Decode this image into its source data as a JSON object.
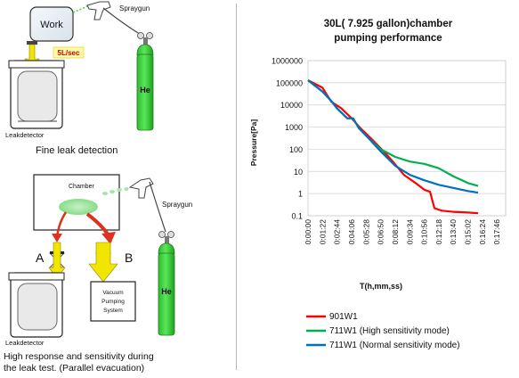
{
  "left_panel": {
    "top_diagram": {
      "work_label": "Work",
      "rate_label": "5L/sec",
      "spraygun_label": "Spraygun",
      "gas_label": "He",
      "leakdetector_label": "Leakdetector",
      "caption": "Fine leak detection"
    },
    "bottom_diagram": {
      "chamber_label": "Chamber",
      "spraygun_label": "Spraygun",
      "gas_label": "He",
      "valve_a_label": "A",
      "valve_b_label": "B",
      "pump_label_lines": [
        "Vacuum",
        "Pumping",
        "System"
      ],
      "leakdetector_label": "Leakdetector",
      "caption_lines": [
        "High response and sensitivity during",
        "the leak test. (Parallel evacuation)"
      ]
    }
  },
  "colors": {
    "gas_cylinder": "#3bd23b",
    "yellow_arrow": "#f2e600",
    "red_arrow": "#e03020",
    "accent_red_text": "#d00000"
  },
  "chart_data": {
    "type": "line",
    "title": "30L( 7.925 gallon)chamber",
    "subtitle": "pumping performance",
    "xlabel": "T(h,mm,ss)",
    "ylabel": "Pressure[Pa]",
    "y_scale": "log",
    "ylim": [
      0.1,
      1000000
    ],
    "y_ticks": [
      "1000000",
      "100000",
      "10000",
      "1000",
      "100",
      "10",
      "1",
      "0.1"
    ],
    "x_ticks": [
      "0:00:00",
      "0:01:22",
      "0:02:44",
      "0:04:06",
      "0:05:28",
      "0:06:50",
      "0:08:12",
      "0:09:34",
      "0:10:56",
      "0:12:18",
      "0:13:40",
      "0:15:02",
      "0:16:24",
      "0:17:46"
    ],
    "legend_position": "bottom",
    "series": [
      {
        "name": "901W1",
        "color": "#ff0000",
        "points": [
          [
            0,
            130000
          ],
          [
            1,
            60000
          ],
          [
            1.6,
            14000
          ],
          [
            2.3,
            7000
          ],
          [
            3,
            2500
          ],
          [
            3.6,
            900
          ],
          [
            4.4,
            280
          ],
          [
            5.2,
            80
          ],
          [
            5.9,
            25
          ],
          [
            6.6,
            7
          ],
          [
            7.4,
            3
          ],
          [
            8,
            1.5
          ],
          [
            8.4,
            1.2
          ],
          [
            8.7,
            0.22
          ],
          [
            9.2,
            0.17
          ],
          [
            10,
            0.15
          ],
          [
            11,
            0.14
          ],
          [
            11.7,
            0.13
          ]
        ]
      },
      {
        "name": "711W1 (High sensitivity mode)",
        "color": "#00b050",
        "points": [
          [
            0,
            130000
          ],
          [
            1,
            40000
          ],
          [
            1.6,
            15000
          ],
          [
            2,
            7000
          ],
          [
            2.7,
            2500
          ],
          [
            3.1,
            2500
          ],
          [
            3.5,
            900
          ],
          [
            4.2,
            300
          ],
          [
            5,
            100
          ],
          [
            6,
            45
          ],
          [
            7,
            28
          ],
          [
            8,
            22
          ],
          [
            9,
            14
          ],
          [
            10,
            6
          ],
          [
            11,
            3
          ],
          [
            11.7,
            2.2
          ]
        ]
      },
      {
        "name": "711W1 (Normal sensitivity mode)",
        "color": "#0070c0",
        "points": [
          [
            0,
            130000
          ],
          [
            1,
            40000
          ],
          [
            1.6,
            15000
          ],
          [
            2,
            7000
          ],
          [
            2.7,
            2500
          ],
          [
            3.1,
            2500
          ],
          [
            3.5,
            900
          ],
          [
            4.2,
            300
          ],
          [
            5,
            80
          ],
          [
            6,
            18
          ],
          [
            7,
            7
          ],
          [
            8,
            4
          ],
          [
            9,
            2.5
          ],
          [
            10,
            1.8
          ],
          [
            11,
            1.3
          ],
          [
            11.7,
            1.1
          ]
        ]
      }
    ]
  }
}
